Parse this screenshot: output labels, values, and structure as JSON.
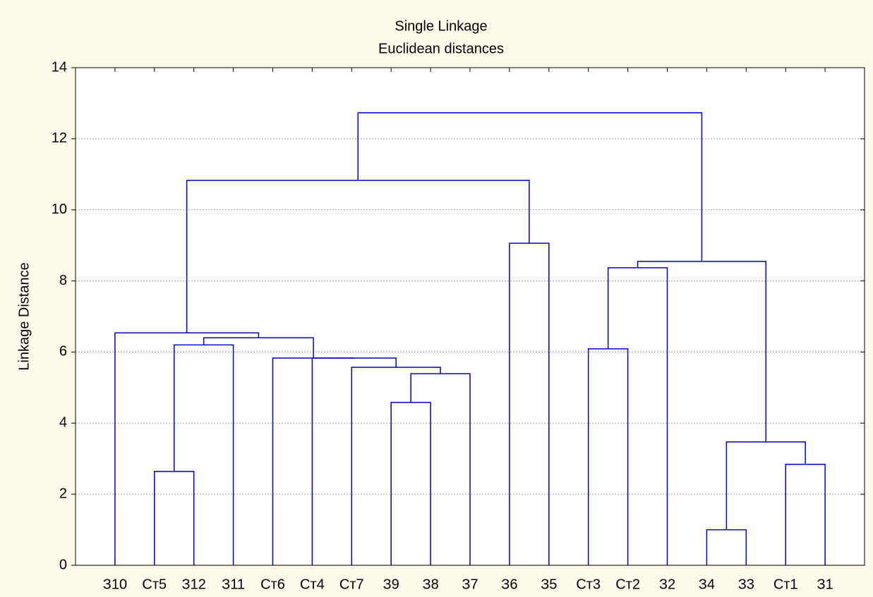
{
  "chart_data": {
    "type": "dendrogram",
    "title": "Single Linkage",
    "subtitle": "Euclidean distances",
    "ylabel": "Linkage Distance",
    "color": "#0000cc",
    "ylim": [
      0,
      14
    ],
    "yticks": [
      0,
      2,
      4,
      6,
      8,
      10,
      12,
      14
    ],
    "grid": true,
    "tree": {
      "height": 12.73,
      "children": [
        {
          "height": 10.83,
          "children": [
            {
              "height": 6.54,
              "children": [
                "З10",
                {
                  "height": 6.4,
                  "children": [
                    {
                      "height": 6.2,
                      "children": [
                        {
                          "height": 2.64,
                          "children": [
                            "Ст5",
                            "З12"
                          ]
                        },
                        "З11"
                      ]
                    },
                    {
                      "height": 5.83,
                      "children": [
                        "Ст6",
                        {
                          "height": 5.83,
                          "children": [
                            "Ст4",
                            {
                              "height": 5.57,
                              "children": [
                                "Ст7",
                                {
                                  "height": 5.39,
                                  "children": [
                                    {
                                      "height": 4.58,
                                      "children": [
                                        "З9",
                                        "З8"
                                      ]
                                    },
                                    "З7"
                                  ]
                                }
                              ]
                            }
                          ]
                        }
                      ]
                    }
                  ]
                }
              ]
            },
            {
              "height": 9.06,
              "children": [
                "З6",
                "З5"
              ]
            }
          ]
        },
        {
          "height": 8.55,
          "children": [
            {
              "height": 8.37,
              "children": [
                {
                  "height": 6.09,
                  "children": [
                    "Ст3",
                    "Ст2"
                  ]
                },
                "З2"
              ]
            },
            {
              "height": 3.47,
              "children": [
                {
                  "height": 1.0,
                  "children": [
                    "З4",
                    "З3"
                  ]
                },
                {
                  "height": 2.84,
                  "children": [
                    "Ст1",
                    "З1"
                  ]
                }
              ]
            }
          ]
        }
      ]
    }
  }
}
